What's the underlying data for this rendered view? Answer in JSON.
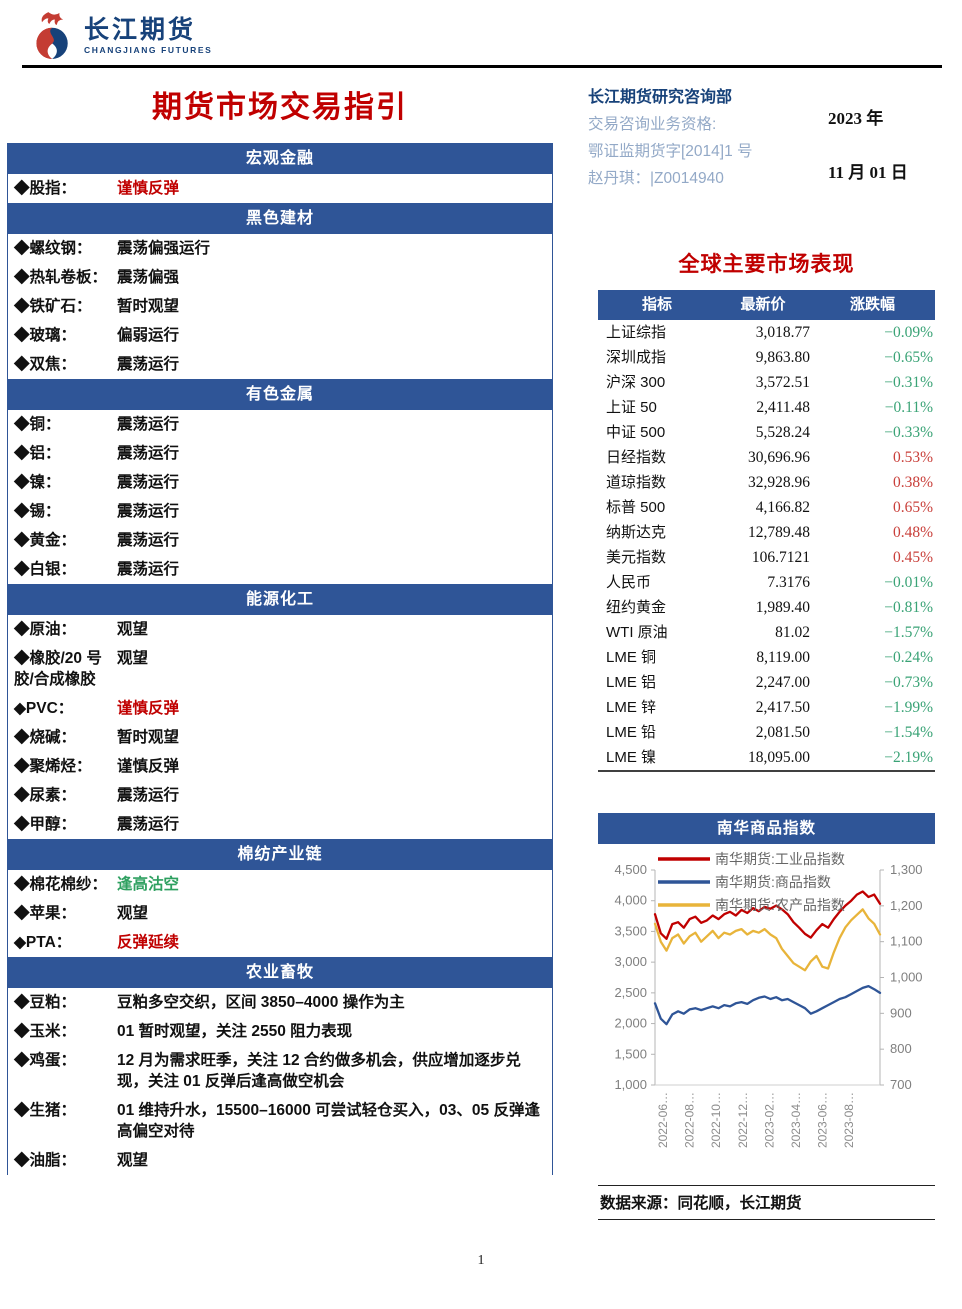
{
  "brand": {
    "name_cn": "长江期货",
    "name_en": "CHANGJIANG FUTURES"
  },
  "title": "期货市场交易指引",
  "header_right": {
    "dept": "长江期货研究咨询部",
    "qualification_label": "交易咨询业务资格:",
    "qualification_no": "鄂证监期货字[2014]1 号",
    "analyst": "赵丹琪：|Z0014940",
    "year": "2023 年",
    "date": "11 月 01 日"
  },
  "guide_sections": [
    {
      "title": "宏观金融",
      "rows": [
        {
          "label": "◆股指：",
          "value": "谨慎反弹",
          "color": "red"
        }
      ]
    },
    {
      "title": "黑色建材",
      "rows": [
        {
          "label": "◆螺纹钢：",
          "value": "震荡偏强运行",
          "color": "black"
        },
        {
          "label": "◆热轧卷板：",
          "value": "震荡偏强",
          "color": "black"
        },
        {
          "label": "◆铁矿石：",
          "value": "暂时观望",
          "color": "black"
        },
        {
          "label": "◆玻璃：",
          "value": "偏弱运行",
          "color": "black"
        },
        {
          "label": "◆双焦：",
          "value": "震荡运行",
          "color": "black"
        }
      ]
    },
    {
      "title": "有色金属",
      "rows": [
        {
          "label": "◆铜：",
          "value": "震荡运行",
          "color": "black"
        },
        {
          "label": "◆铝：",
          "value": "震荡运行",
          "color": "black"
        },
        {
          "label": "◆镍：",
          "value": "震荡运行",
          "color": "black"
        },
        {
          "label": "◆锡：",
          "value": "震荡运行",
          "color": "black"
        },
        {
          "label": "◆黄金：",
          "value": "震荡运行",
          "color": "black"
        },
        {
          "label": "◆白银：",
          "value": "震荡运行",
          "color": "black"
        }
      ]
    },
    {
      "title": "能源化工",
      "rows": [
        {
          "label": "◆原油：",
          "value": "观望",
          "color": "black"
        },
        {
          "label": "◆橡胶/20 号胶/合成橡胶",
          "value": "观望",
          "color": "black"
        },
        {
          "label": "◆PVC：",
          "value": "谨慎反弹",
          "color": "red"
        },
        {
          "label": "◆烧碱：",
          "value": "暂时观望",
          "color": "black"
        },
        {
          "label": "◆聚烯烃：",
          "value": "谨慎反弹",
          "color": "black"
        },
        {
          "label": "◆尿素：",
          "value": "震荡运行",
          "color": "black"
        },
        {
          "label": "◆甲醇：",
          "value": "震荡运行",
          "color": "black"
        }
      ]
    },
    {
      "title": "棉纺产业链",
      "rows": [
        {
          "label": "◆棉花棉纱：",
          "value": "逢高沽空",
          "color": "green"
        },
        {
          "label": "◆苹果：",
          "value": "观望",
          "color": "black"
        },
        {
          "label": "◆PTA：",
          "value": "反弹延续",
          "color": "red"
        }
      ]
    },
    {
      "title": "农业畜牧",
      "rows": [
        {
          "label": "◆豆粕：",
          "value": "豆粕多空交织，区间 3850–4000 操作为主",
          "color": "black"
        },
        {
          "label": "◆玉米：",
          "value": "01 暂时观望，关注 2550 阻力表现",
          "color": "black"
        },
        {
          "label": "◆鸡蛋：",
          "value": "12 月为需求旺季，关注 12 合约做多机会，供应增加逐步兑现，关注 01 反弹后逢高做空机会",
          "color": "black"
        },
        {
          "label": "◆生猪：",
          "value": "01 维持升水，15500–16000 可尝试轻仓买入，03、05 反弹逢高偏空对待",
          "color": "black"
        },
        {
          "label": "◆油脂：",
          "value": "观望",
          "color": "black"
        }
      ]
    }
  ],
  "market_table": {
    "title": "全球主要市场表现",
    "headers": [
      "指标",
      "最新价",
      "涨跌幅"
    ],
    "rows": [
      {
        "name": "上证综指",
        "price": "3,018.77",
        "change": "−0.09%",
        "dir": "down"
      },
      {
        "name": "深圳成指",
        "price": "9,863.80",
        "change": "−0.65%",
        "dir": "down"
      },
      {
        "name": "沪深 300",
        "price": "3,572.51",
        "change": "−0.31%",
        "dir": "down"
      },
      {
        "name": "上证 50",
        "price": "2,411.48",
        "change": "−0.11%",
        "dir": "down"
      },
      {
        "name": "中证 500",
        "price": "5,528.24",
        "change": "−0.33%",
        "dir": "down"
      },
      {
        "name": "日经指数",
        "price": "30,696.96",
        "change": "0.53%",
        "dir": "up"
      },
      {
        "name": "道琼指数",
        "price": "32,928.96",
        "change": "0.38%",
        "dir": "up"
      },
      {
        "name": "标普 500",
        "price": "4,166.82",
        "change": "0.65%",
        "dir": "up"
      },
      {
        "name": "纳斯达克",
        "price": "12,789.48",
        "change": "0.48%",
        "dir": "up"
      },
      {
        "name": "美元指数",
        "price": "106.7121",
        "change": "0.45%",
        "dir": "up"
      },
      {
        "name": "人民币",
        "price": "7.3176",
        "change": "−0.01%",
        "dir": "down"
      },
      {
        "name": "纽约黄金",
        "price": "1,989.40",
        "change": "−0.81%",
        "dir": "down"
      },
      {
        "name": "WTI 原油",
        "price": "81.02",
        "change": "−1.57%",
        "dir": "down"
      },
      {
        "name": "LME 铜",
        "price": "8,119.00",
        "change": "−0.24%",
        "dir": "down"
      },
      {
        "name": "LME 铝",
        "price": "2,247.00",
        "change": "−0.73%",
        "dir": "down"
      },
      {
        "name": "LME 锌",
        "price": "2,417.50",
        "change": "−1.99%",
        "dir": "down"
      },
      {
        "name": "LME 铅",
        "price": "2,081.50",
        "change": "−1.54%",
        "dir": "down"
      },
      {
        "name": "LME 镍",
        "price": "18,095.00",
        "change": "−2.19%",
        "dir": "down"
      }
    ]
  },
  "chart_data": {
    "type": "line",
    "title": "南华商品指数",
    "grid": false,
    "legend_position": "top-left",
    "x_tick_labels": [
      "2022-06…",
      "2022-08…",
      "2022-10…",
      "2022-12…",
      "2023-02…",
      "2023-04…",
      "2023-06…",
      "2023-08…"
    ],
    "left_axis": {
      "lim": [
        1000,
        4500
      ],
      "ticks": [
        "4,500",
        "4,000",
        "3,500",
        "3,000",
        "2,500",
        "2,000",
        "1,500",
        "1,000"
      ]
    },
    "right_axis": {
      "lim": [
        700,
        1300
      ],
      "ticks": [
        "1,300",
        "1,200",
        "1,100",
        "1,000",
        "900",
        "800",
        "700"
      ]
    },
    "series": [
      {
        "name": "南华期货:工业品指数",
        "color": "#c00000",
        "axis": "left",
        "values": [
          3780,
          3470,
          3380,
          3620,
          3650,
          3560,
          3700,
          3740,
          3640,
          3680,
          3760,
          3700,
          3780,
          3820,
          3760,
          3850,
          3800,
          3880,
          3830,
          3900,
          3870,
          3920,
          3860,
          3780,
          3650,
          3560,
          3460,
          3400,
          3520,
          3620,
          3560,
          3700,
          3820,
          3920,
          4000,
          4100,
          4150,
          4060,
          4100,
          3950
        ]
      },
      {
        "name": "南华期货:商品指数",
        "color": "#2f5597",
        "axis": "left",
        "values": [
          2330,
          2080,
          1990,
          2150,
          2200,
          2160,
          2230,
          2250,
          2220,
          2250,
          2280,
          2250,
          2300,
          2280,
          2330,
          2350,
          2320,
          2380,
          2420,
          2440,
          2400,
          2430,
          2380,
          2400,
          2350,
          2300,
          2250,
          2160,
          2200,
          2250,
          2300,
          2350,
          2400,
          2430,
          2480,
          2530,
          2580,
          2610,
          2560,
          2500
        ]
      },
      {
        "name": "南华期货:农产品指数",
        "color": "#e8b43a",
        "axis": "right",
        "values": [
          1150,
          1100,
          1075,
          1110,
          1120,
          1095,
          1115,
          1125,
          1100,
          1115,
          1130,
          1110,
          1125,
          1120,
          1130,
          1135,
          1120,
          1130,
          1125,
          1135,
          1120,
          1110,
          1080,
          1060,
          1040,
          1030,
          1020,
          1045,
          1060,
          1030,
          1025,
          1070,
          1110,
          1140,
          1160,
          1175,
          1190,
          1165,
          1150,
          1120
        ]
      }
    ]
  },
  "source_note": "数据来源：同花顺，长江期货",
  "page": {
    "number": "1"
  }
}
